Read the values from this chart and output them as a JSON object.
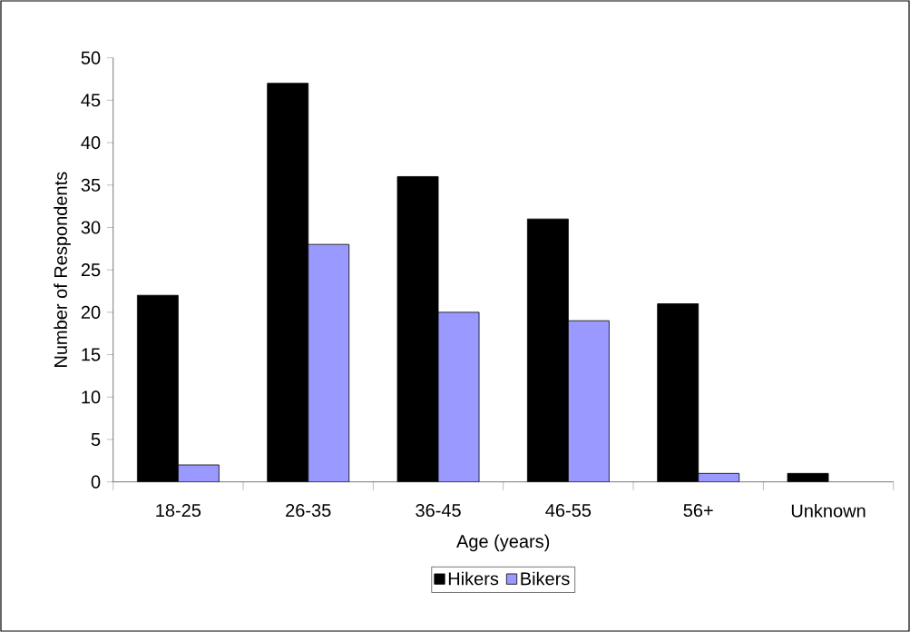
{
  "chart_data": {
    "type": "bar",
    "xlabel": "Age (years)",
    "ylabel": "Number of Respondents",
    "categories": [
      "18-25",
      "26-35",
      "36-45",
      "46-55",
      "56+",
      "Unknown"
    ],
    "series": [
      {
        "name": "Hikers",
        "color": "#000000",
        "values": [
          22,
          47,
          36,
          31,
          21,
          1
        ]
      },
      {
        "name": "Bikers",
        "color": "#9999ff",
        "values": [
          2,
          28,
          20,
          19,
          1,
          null
        ]
      }
    ],
    "ylim": [
      0,
      50
    ],
    "yticks": [
      0,
      5,
      10,
      15,
      20,
      25,
      30,
      35,
      40,
      45,
      50
    ],
    "grid": false,
    "legend": "bottom"
  }
}
